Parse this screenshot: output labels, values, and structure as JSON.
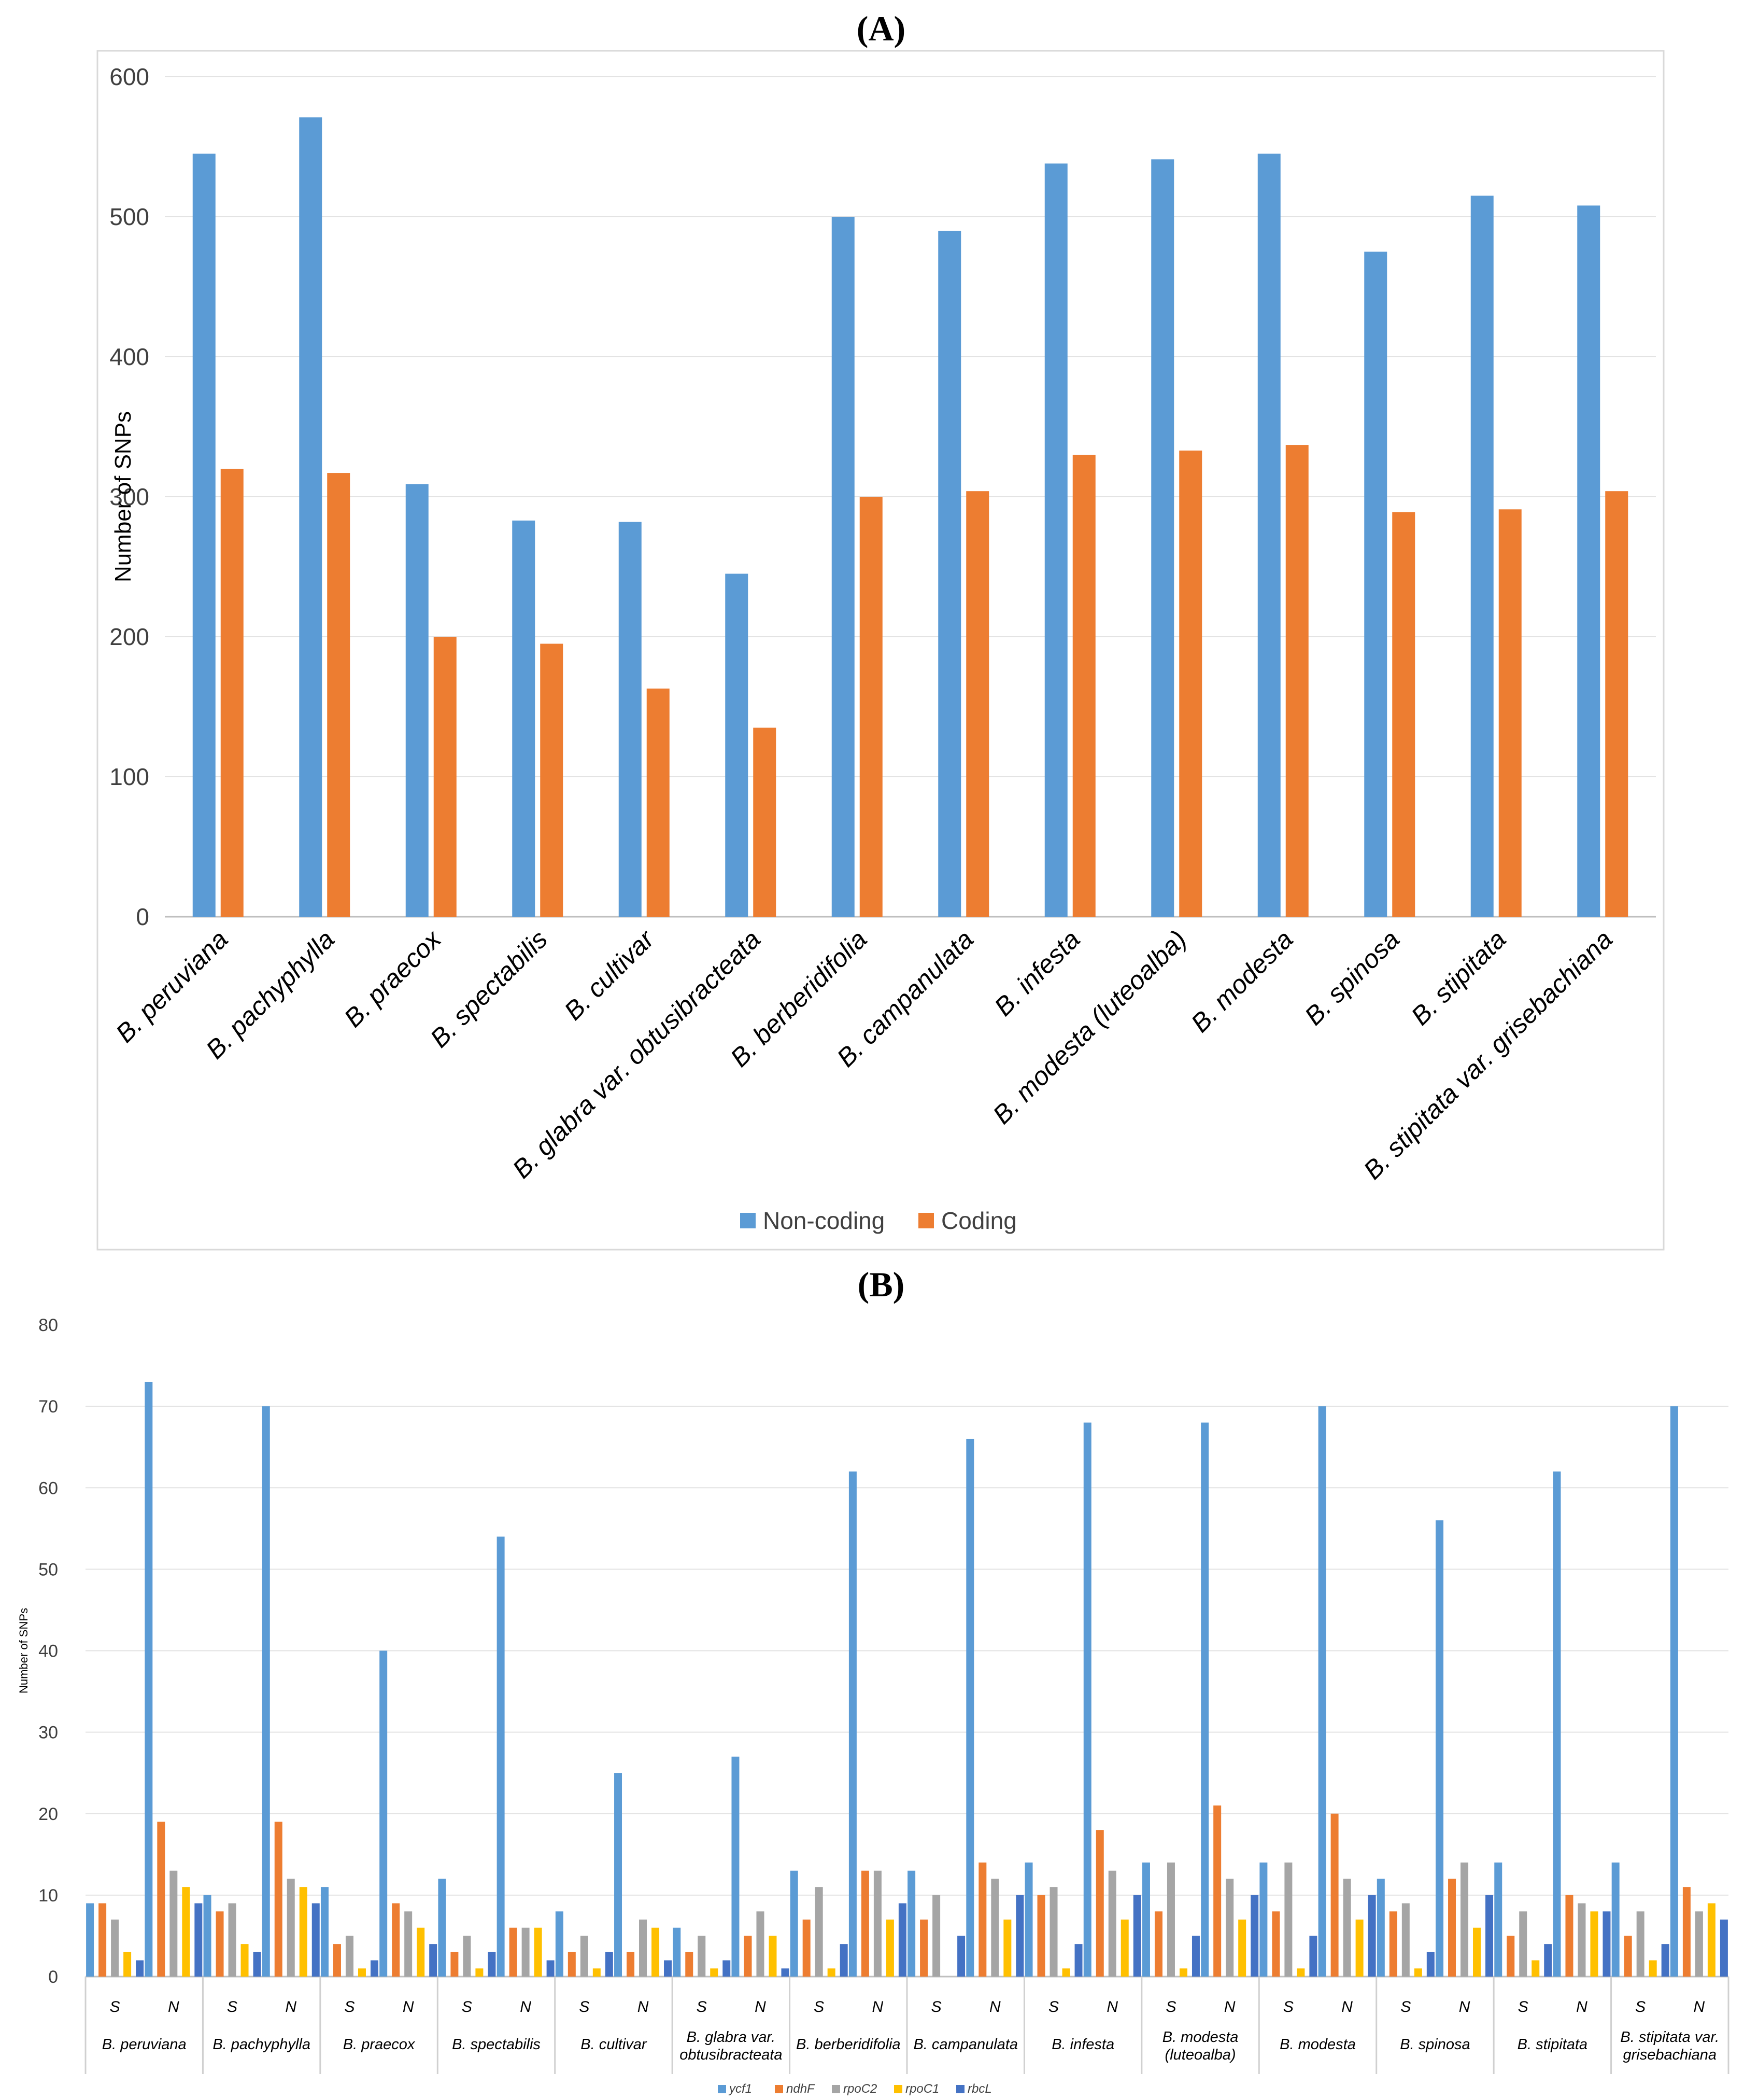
{
  "chart_data": [
    {
      "panel": "(A)",
      "type": "bar",
      "title": "",
      "xlabel": "",
      "ylabel": "Number of SNPs",
      "ylim": [
        0,
        600
      ],
      "yticks": [
        0,
        100,
        200,
        300,
        400,
        500,
        600
      ],
      "grid": true,
      "legend_position": "bottom-center",
      "categories": [
        "B. peruviana",
        "B. pachyphylla",
        "B. praecox",
        "B. spectabilis",
        "B. cultivar",
        "B. glabra var. obtusibracteata",
        "B. berberidifolia",
        "B. campanulata",
        "B. infesta",
        "B. modesta (luteoalba)",
        "B. modesta",
        "B. spinosa",
        "B. stipitata",
        "B. stipitata var. grisebachiana"
      ],
      "series": [
        {
          "name": "Non-coding",
          "color": "#5b9bd5",
          "values": [
            545,
            571,
            309,
            283,
            282,
            245,
            500,
            490,
            538,
            541,
            545,
            475,
            515,
            508
          ]
        },
        {
          "name": "Coding",
          "color": "#ed7d31",
          "values": [
            320,
            317,
            200,
            195,
            163,
            135,
            300,
            304,
            330,
            333,
            337,
            289,
            291,
            304
          ]
        }
      ]
    },
    {
      "panel": "(B)",
      "type": "bar",
      "title": "",
      "xlabel": "",
      "ylabel": "Number of SNPs",
      "ylim": [
        0,
        80
      ],
      "yticks": [
        0,
        10,
        20,
        30,
        40,
        50,
        60,
        70,
        80
      ],
      "grid": true,
      "legend_position": "bottom-center",
      "groups": [
        "B. peruviana",
        "B. pachyphylla",
        "B. praecox",
        "B. spectabilis",
        "B. cultivar",
        "B. glabra var. obtusibracteata",
        "B. berberidifolia",
        "B. campanulata",
        "B. infesta",
        "B. modesta (luteoalba)",
        "B. modesta",
        "B. spinosa",
        "B. stipitata",
        "B. stipitata var. grisebachiana"
      ],
      "group_labels_display": [
        [
          "B. peruviana"
        ],
        [
          "B. pachyphylla"
        ],
        [
          "B. praecox"
        ],
        [
          "B. spectabilis"
        ],
        [
          "B. cultivar"
        ],
        [
          "B. glabra var.",
          "obtusibracteata"
        ],
        [
          "B. berberidifolia"
        ],
        [
          "B. campanulata"
        ],
        [
          "B. infesta"
        ],
        [
          "B. modesta",
          "(luteoalba)"
        ],
        [
          "B. modesta"
        ],
        [
          "B. spinosa"
        ],
        [
          "B. stipitata"
        ],
        [
          "B. stipitata var.",
          "grisebachiana"
        ]
      ],
      "subcategories": [
        "S",
        "N"
      ],
      "series": [
        {
          "name": "ycf1",
          "color": "#5b9bd5",
          "values": [
            9,
            73,
            10,
            70,
            11,
            40,
            12,
            54,
            8,
            25,
            6,
            27,
            13,
            62,
            13,
            66,
            14,
            68,
            14,
            68,
            14,
            70,
            12,
            56,
            14,
            62,
            14,
            70
          ]
        },
        {
          "name": "ndhF",
          "color": "#ed7d31",
          "values": [
            9,
            19,
            8,
            19,
            4,
            9,
            3,
            6,
            3,
            3,
            3,
            5,
            7,
            13,
            7,
            14,
            10,
            18,
            8,
            21,
            8,
            20,
            8,
            12,
            5,
            10,
            5,
            11
          ]
        },
        {
          "name": "rpoC2",
          "color": "#a5a5a5",
          "values": [
            7,
            13,
            9,
            12,
            5,
            8,
            5,
            6,
            5,
            7,
            5,
            8,
            11,
            13,
            10,
            12,
            11,
            13,
            14,
            12,
            14,
            12,
            9,
            14,
            8,
            9,
            8,
            8
          ]
        },
        {
          "name": "rpoC1",
          "color": "#ffc000",
          "values": [
            3,
            11,
            4,
            11,
            1,
            6,
            1,
            6,
            1,
            6,
            1,
            5,
            1,
            7,
            0,
            7,
            1,
            7,
            1,
            7,
            1,
            7,
            1,
            6,
            2,
            8,
            2,
            9
          ]
        },
        {
          "name": "rbcL",
          "color": "#4472c4",
          "values": [
            2,
            9,
            3,
            9,
            2,
            4,
            3,
            2,
            3,
            2,
            2,
            1,
            4,
            9,
            5,
            10,
            4,
            10,
            5,
            10,
            5,
            10,
            3,
            10,
            4,
            8,
            4,
            7
          ]
        }
      ]
    }
  ]
}
